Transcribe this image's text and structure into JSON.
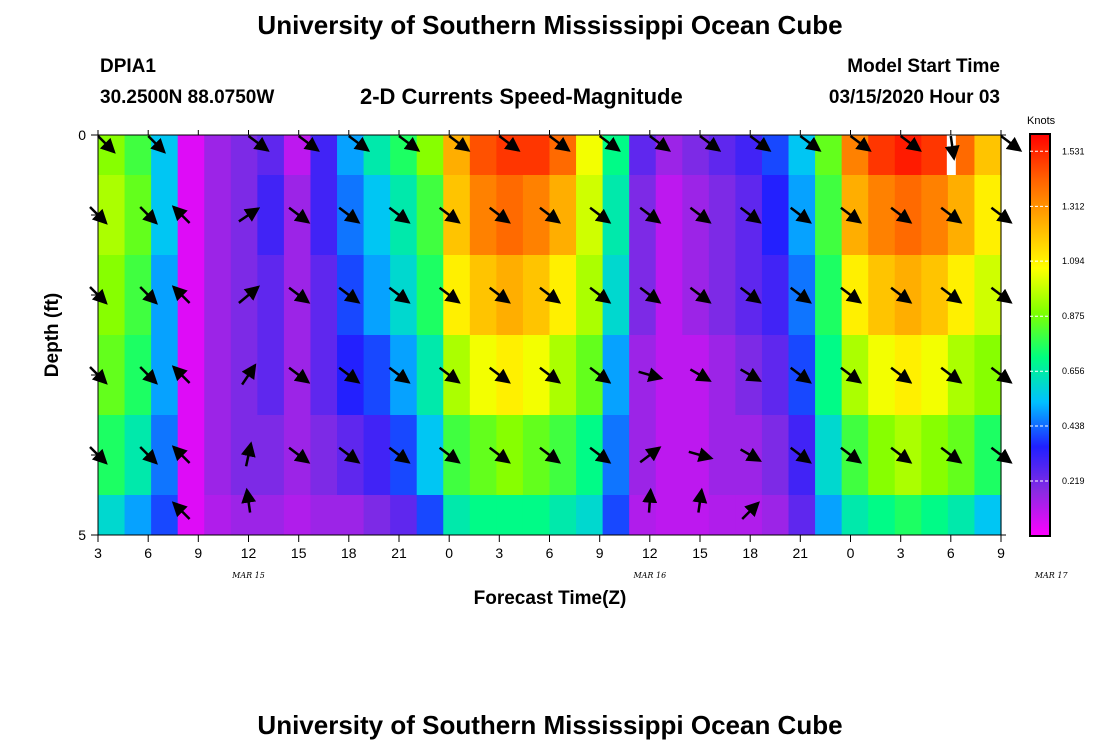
{
  "page": {
    "title_top": "University of Southern Mississippi Ocean Cube",
    "title_bottom": "University of Southern Mississippi Ocean Cube",
    "station_id": "DPIA1",
    "station_coords": "30.2500N 88.0750W",
    "chart_title": "2-D Currents Speed-Magnitude",
    "model_start_label": "Model Start Time",
    "model_start_value": "03/15/2020 Hour 03"
  },
  "colors": {
    "scale": [
      "#ff00ff",
      "#8a2be2",
      "#2020ff",
      "#00c0ff",
      "#00ff7f",
      "#7fff00",
      "#ffff00",
      "#ffb000",
      "#ff6000",
      "#ff0000"
    ],
    "arrow": "#000000",
    "missing": "#ffffff"
  },
  "chart_data": {
    "type": "heatmap",
    "title": "2-D Currents Speed-Magnitude",
    "xlabel": "Forecast Time(Z)",
    "ylabel": "Depth (ft)",
    "x_hours": [
      3,
      9,
      15,
      21,
      27,
      33,
      39,
      45,
      51,
      57
    ],
    "x_tick_labels": [
      "3",
      "6",
      "9",
      "12",
      "15",
      "18",
      "21",
      "0",
      "3",
      "6",
      "9",
      "12",
      "15",
      "18",
      "21",
      "0",
      "3",
      "6",
      "9"
    ],
    "date_labels": [
      {
        "text": "MAR 15",
        "hour": 12
      },
      {
        "text": "MAR 16",
        "hour": 36
      },
      {
        "text": "MAR 17",
        "hour": 60
      }
    ],
    "y_ticks": [
      "0",
      "5"
    ],
    "ylim": [
      0,
      5
    ],
    "xlim": [
      3,
      57
    ],
    "colorbar": {
      "unit": "Knots",
      "range": [
        0,
        1.6
      ],
      "labels": [
        "1.531",
        "1.312",
        "1.094",
        "0.875",
        "0.656",
        "0.438",
        "0.219"
      ]
    },
    "speed_knots": [
      [
        0.9,
        0.8,
        0.55,
        0.05,
        0.15,
        0.2,
        0.25,
        0.1,
        0.3,
        0.5,
        0.65,
        0.75,
        0.9,
        1.25,
        1.45,
        1.5,
        1.5,
        1.4,
        1.05,
        0.7,
        0.25,
        0.15,
        0.2,
        0.25,
        0.3,
        0.4,
        0.55,
        0.85,
        1.35,
        1.5,
        1.55,
        1.5,
        1.4,
        1.2
      ],
      [
        0.95,
        0.85,
        0.55,
        0.05,
        0.15,
        0.2,
        0.3,
        0.15,
        0.3,
        0.45,
        0.55,
        0.65,
        0.8,
        1.2,
        1.35,
        1.4,
        1.35,
        1.25,
        1.0,
        0.65,
        0.2,
        0.1,
        0.15,
        0.2,
        0.25,
        0.35,
        0.5,
        0.8,
        1.25,
        1.35,
        1.4,
        1.35,
        1.25,
        1.1
      ],
      [
        0.9,
        0.8,
        0.5,
        0.05,
        0.15,
        0.2,
        0.25,
        0.15,
        0.25,
        0.4,
        0.5,
        0.6,
        0.75,
        1.1,
        1.2,
        1.25,
        1.2,
        1.1,
        0.95,
        0.6,
        0.2,
        0.1,
        0.15,
        0.2,
        0.25,
        0.3,
        0.45,
        0.75,
        1.1,
        1.2,
        1.25,
        1.2,
        1.1,
        1.0
      ],
      [
        0.85,
        0.75,
        0.5,
        0.05,
        0.15,
        0.2,
        0.25,
        0.15,
        0.25,
        0.35,
        0.4,
        0.5,
        0.65,
        0.95,
        1.05,
        1.1,
        1.05,
        0.95,
        0.85,
        0.5,
        0.15,
        0.1,
        0.1,
        0.15,
        0.2,
        0.25,
        0.4,
        0.7,
        0.95,
        1.05,
        1.1,
        1.05,
        0.95,
        0.9
      ],
      [
        0.75,
        0.65,
        0.45,
        0.05,
        0.15,
        0.2,
        0.2,
        0.15,
        0.2,
        0.25,
        0.3,
        0.4,
        0.55,
        0.8,
        0.85,
        0.9,
        0.85,
        0.8,
        0.7,
        0.45,
        0.15,
        0.1,
        0.1,
        0.15,
        0.15,
        0.2,
        0.3,
        0.6,
        0.8,
        0.9,
        0.95,
        0.9,
        0.85,
        0.75
      ],
      [
        0.6,
        0.5,
        0.4,
        0.05,
        0.12,
        0.15,
        0.15,
        0.12,
        0.15,
        0.15,
        0.2,
        0.25,
        0.4,
        0.65,
        0.7,
        0.7,
        0.7,
        0.65,
        0.6,
        0.4,
        0.12,
        0.1,
        0.1,
        0.12,
        0.12,
        0.15,
        0.25,
        0.5,
        0.65,
        0.7,
        0.75,
        0.7,
        0.65,
        0.55
      ]
    ],
    "missing_cells": [
      {
        "row": 0,
        "hour": 54
      }
    ],
    "vectors": [
      [
        [
          3,
          0.5,
          -0.5
        ],
        [
          6,
          0.5,
          -0.5
        ],
        [
          12,
          0.6,
          -0.45
        ],
        [
          15,
          0.6,
          -0.45
        ],
        [
          18,
          0.6,
          -0.45
        ],
        [
          21,
          0.6,
          -0.45
        ],
        [
          24,
          0.6,
          -0.45
        ],
        [
          27,
          0.6,
          -0.45
        ],
        [
          30,
          0.6,
          -0.45
        ],
        [
          33,
          0.6,
          -0.45
        ],
        [
          36,
          0.6,
          -0.45
        ],
        [
          39,
          0.6,
          -0.45
        ],
        [
          42,
          0.6,
          -0.45
        ],
        [
          45,
          0.6,
          -0.45
        ],
        [
          48,
          0.6,
          -0.45
        ],
        [
          51,
          0.6,
          -0.45
        ],
        [
          54,
          0.1,
          -0.7
        ],
        [
          57,
          0.6,
          -0.45
        ]
      ],
      [
        [
          3,
          0.5,
          -0.5
        ],
        [
          6,
          0.5,
          -0.5
        ],
        [
          8,
          -0.5,
          0.5
        ],
        [
          12,
          0.6,
          0.4
        ],
        [
          15,
          0.6,
          -0.45
        ],
        [
          18,
          0.6,
          -0.45
        ],
        [
          21,
          0.6,
          -0.45
        ],
        [
          24,
          0.6,
          -0.45
        ],
        [
          27,
          0.6,
          -0.45
        ],
        [
          30,
          0.6,
          -0.45
        ],
        [
          33,
          0.6,
          -0.45
        ],
        [
          36,
          0.6,
          -0.45
        ],
        [
          39,
          0.6,
          -0.45
        ],
        [
          42,
          0.6,
          -0.45
        ],
        [
          45,
          0.6,
          -0.45
        ],
        [
          48,
          0.6,
          -0.45
        ],
        [
          51,
          0.6,
          -0.45
        ],
        [
          54,
          0.6,
          -0.45
        ],
        [
          57,
          0.6,
          -0.45
        ]
      ],
      [
        [
          3,
          0.5,
          -0.5
        ],
        [
          6,
          0.5,
          -0.5
        ],
        [
          8,
          -0.5,
          0.5
        ],
        [
          12,
          0.6,
          0.5
        ],
        [
          15,
          0.6,
          -0.45
        ],
        [
          18,
          0.6,
          -0.45
        ],
        [
          21,
          0.6,
          -0.45
        ],
        [
          24,
          0.6,
          -0.45
        ],
        [
          27,
          0.6,
          -0.45
        ],
        [
          30,
          0.6,
          -0.45
        ],
        [
          33,
          0.6,
          -0.45
        ],
        [
          36,
          0.6,
          -0.45
        ],
        [
          39,
          0.6,
          -0.45
        ],
        [
          42,
          0.6,
          -0.45
        ],
        [
          45,
          0.6,
          -0.45
        ],
        [
          48,
          0.6,
          -0.45
        ],
        [
          51,
          0.6,
          -0.45
        ],
        [
          54,
          0.6,
          -0.45
        ],
        [
          57,
          0.6,
          -0.45
        ]
      ],
      [
        [
          3,
          0.5,
          -0.5
        ],
        [
          6,
          0.5,
          -0.5
        ],
        [
          8,
          -0.5,
          0.5
        ],
        [
          12,
          0.4,
          0.6
        ],
        [
          15,
          0.6,
          -0.45
        ],
        [
          18,
          0.6,
          -0.45
        ],
        [
          21,
          0.6,
          -0.45
        ],
        [
          24,
          0.6,
          -0.45
        ],
        [
          27,
          0.6,
          -0.45
        ],
        [
          30,
          0.6,
          -0.45
        ],
        [
          33,
          0.6,
          -0.45
        ],
        [
          36,
          0.7,
          -0.2
        ],
        [
          39,
          0.6,
          -0.35
        ],
        [
          42,
          0.6,
          -0.35
        ],
        [
          45,
          0.6,
          -0.45
        ],
        [
          48,
          0.6,
          -0.45
        ],
        [
          51,
          0.6,
          -0.45
        ],
        [
          54,
          0.6,
          -0.45
        ],
        [
          57,
          0.6,
          -0.45
        ]
      ],
      [
        [
          3,
          0.5,
          -0.5
        ],
        [
          6,
          0.5,
          -0.5
        ],
        [
          8,
          -0.5,
          0.5
        ],
        [
          12,
          0.15,
          0.7
        ],
        [
          15,
          0.6,
          -0.45
        ],
        [
          18,
          0.6,
          -0.45
        ],
        [
          21,
          0.6,
          -0.45
        ],
        [
          24,
          0.6,
          -0.45
        ],
        [
          27,
          0.6,
          -0.45
        ],
        [
          30,
          0.6,
          -0.45
        ],
        [
          33,
          0.6,
          -0.45
        ],
        [
          36,
          0.6,
          0.45
        ],
        [
          39,
          0.7,
          -0.2
        ],
        [
          42,
          0.6,
          -0.35
        ],
        [
          45,
          0.6,
          -0.45
        ],
        [
          48,
          0.6,
          -0.45
        ],
        [
          51,
          0.6,
          -0.45
        ],
        [
          54,
          0.6,
          -0.45
        ],
        [
          57,
          0.6,
          -0.45
        ]
      ],
      [
        [
          8,
          -0.5,
          0.5
        ],
        [
          12,
          -0.1,
          0.7
        ],
        [
          36,
          0.05,
          0.7
        ],
        [
          39,
          0.1,
          0.7
        ],
        [
          42,
          0.5,
          0.5
        ]
      ]
    ]
  }
}
